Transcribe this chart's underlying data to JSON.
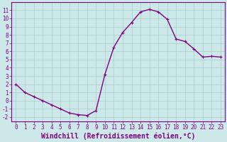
{
  "x": [
    0,
    1,
    2,
    3,
    4,
    5,
    6,
    7,
    8,
    9,
    10,
    11,
    12,
    13,
    14,
    15,
    16,
    17,
    18,
    19,
    20,
    21,
    22,
    23
  ],
  "y": [
    2,
    1,
    0.5,
    0,
    -0.5,
    -1,
    -1.5,
    -1.7,
    -1.8,
    -1.2,
    3.2,
    6.5,
    8.3,
    9.5,
    10.8,
    11.1,
    10.8,
    9.9,
    7.5,
    7.2,
    6.3,
    5.3,
    5.4,
    5.3
  ],
  "line_color": "#800080",
  "marker": "+",
  "marker_size": 3,
  "xlabel": "Windchill (Refroidissement éolien,°C)",
  "xlabel_fontsize": 7,
  "xlim": [
    -0.5,
    23.5
  ],
  "ylim": [
    -2.5,
    12
  ],
  "yticks": [
    -2,
    -1,
    0,
    1,
    2,
    3,
    4,
    5,
    6,
    7,
    8,
    9,
    10,
    11
  ],
  "xticks": [
    0,
    1,
    2,
    3,
    4,
    5,
    6,
    7,
    8,
    9,
    10,
    11,
    12,
    13,
    14,
    15,
    16,
    17,
    18,
    19,
    20,
    21,
    22,
    23
  ],
  "bg_color": "#cce8e8",
  "grid_color": "#aacccc",
  "tick_color": "#800080",
  "tick_fontsize": 5.5,
  "line_width": 1.0,
  "spine_color": "#800080",
  "xlabel_fontweight": "bold"
}
